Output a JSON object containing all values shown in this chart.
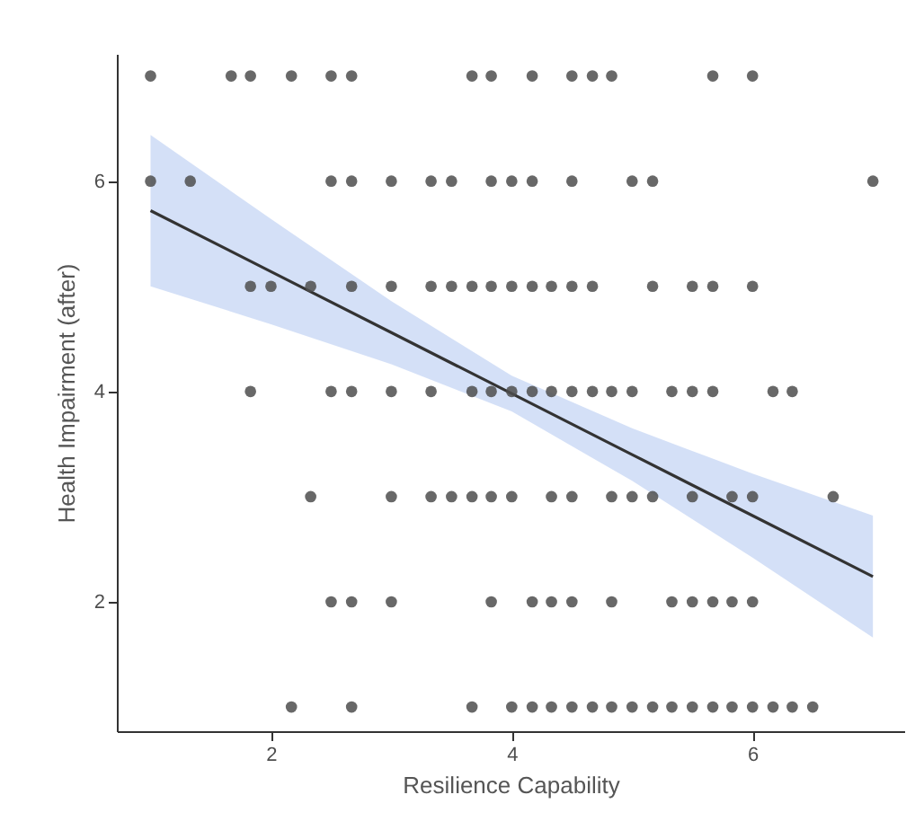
{
  "chart_data": {
    "type": "scatter",
    "xlabel": "Resilience Capability",
    "ylabel": "Health Impairment (after)",
    "xlim": [
      0.72,
      7.26
    ],
    "xticks": [
      2,
      4,
      6
    ],
    "ylim": [
      0.77,
      7.21
    ],
    "yticks": [
      2,
      4,
      6
    ],
    "grid": false,
    "series": [
      {
        "marker": "circle",
        "color": "#4d4d4d",
        "x": [
          1,
          1.67,
          1.83,
          2.17,
          2.5,
          2.67,
          3.67,
          3.83,
          4.17,
          4.5,
          4.67,
          4.83,
          5.67,
          6,
          1,
          1.33,
          2.5,
          2.67,
          3,
          3.33,
          3.5,
          3.83,
          4,
          4.17,
          4.5,
          5,
          5.17,
          7,
          1.83,
          2,
          2.33,
          2.67,
          3,
          3.33,
          3.5,
          3.67,
          3.83,
          4,
          4.17,
          4.33,
          4.5,
          4.67,
          5.17,
          5.5,
          5.67,
          6,
          1.83,
          2.5,
          2.67,
          3,
          3.33,
          3.67,
          3.83,
          4,
          4.17,
          4.33,
          4.5,
          4.67,
          4.83,
          5,
          5.33,
          5.5,
          5.67,
          6.17,
          6.33,
          2.33,
          3,
          3.33,
          3.5,
          3.67,
          3.83,
          4,
          4.33,
          4.5,
          4.83,
          5,
          5.17,
          5.5,
          5.83,
          6,
          6.67,
          2.5,
          2.67,
          3,
          3.83,
          4.17,
          4.33,
          4.5,
          4.83,
          5.33,
          5.5,
          5.67,
          5.83,
          6,
          2.17,
          2.67,
          3.67,
          4,
          4.17,
          4.33,
          4.5,
          4.67,
          4.83,
          5,
          5.17,
          5.33,
          5.5,
          5.67,
          5.83,
          6,
          6.17,
          6.33,
          6.5
        ],
        "values": [
          7,
          7,
          7,
          7,
          7,
          7,
          7,
          7,
          7,
          7,
          7,
          7,
          7,
          7,
          6,
          6,
          6,
          6,
          6,
          6,
          6,
          6,
          6,
          6,
          6,
          6,
          6,
          6,
          5,
          5,
          5,
          5,
          5,
          5,
          5,
          5,
          5,
          5,
          5,
          5,
          5,
          5,
          5,
          5,
          5,
          5,
          4,
          4,
          4,
          4,
          4,
          4,
          4,
          4,
          4,
          4,
          4,
          4,
          4,
          4,
          4,
          4,
          4,
          4,
          4,
          3,
          3,
          3,
          3,
          3,
          3,
          3,
          3,
          3,
          3,
          3,
          3,
          3,
          3,
          3,
          3,
          2,
          2,
          2,
          2,
          2,
          2,
          2,
          2,
          2,
          2,
          2,
          2,
          2,
          1,
          1,
          1,
          1,
          1,
          1,
          1,
          1,
          1,
          1,
          1,
          1,
          1,
          1,
          1,
          1,
          1,
          1,
          1
        ]
      },
      {
        "type": "line",
        "color": "#333333",
        "x": [
          1,
          2,
          3,
          4,
          5,
          6,
          7
        ],
        "values": [
          5.72,
          5.14,
          4.56,
          3.98,
          3.4,
          2.82,
          2.24
        ],
        "lower": [
          5.0,
          4.64,
          4.26,
          3.81,
          3.15,
          2.42,
          1.66
        ],
        "upper": [
          6.44,
          5.64,
          4.86,
          4.15,
          3.65,
          3.22,
          2.82
        ]
      }
    ]
  }
}
